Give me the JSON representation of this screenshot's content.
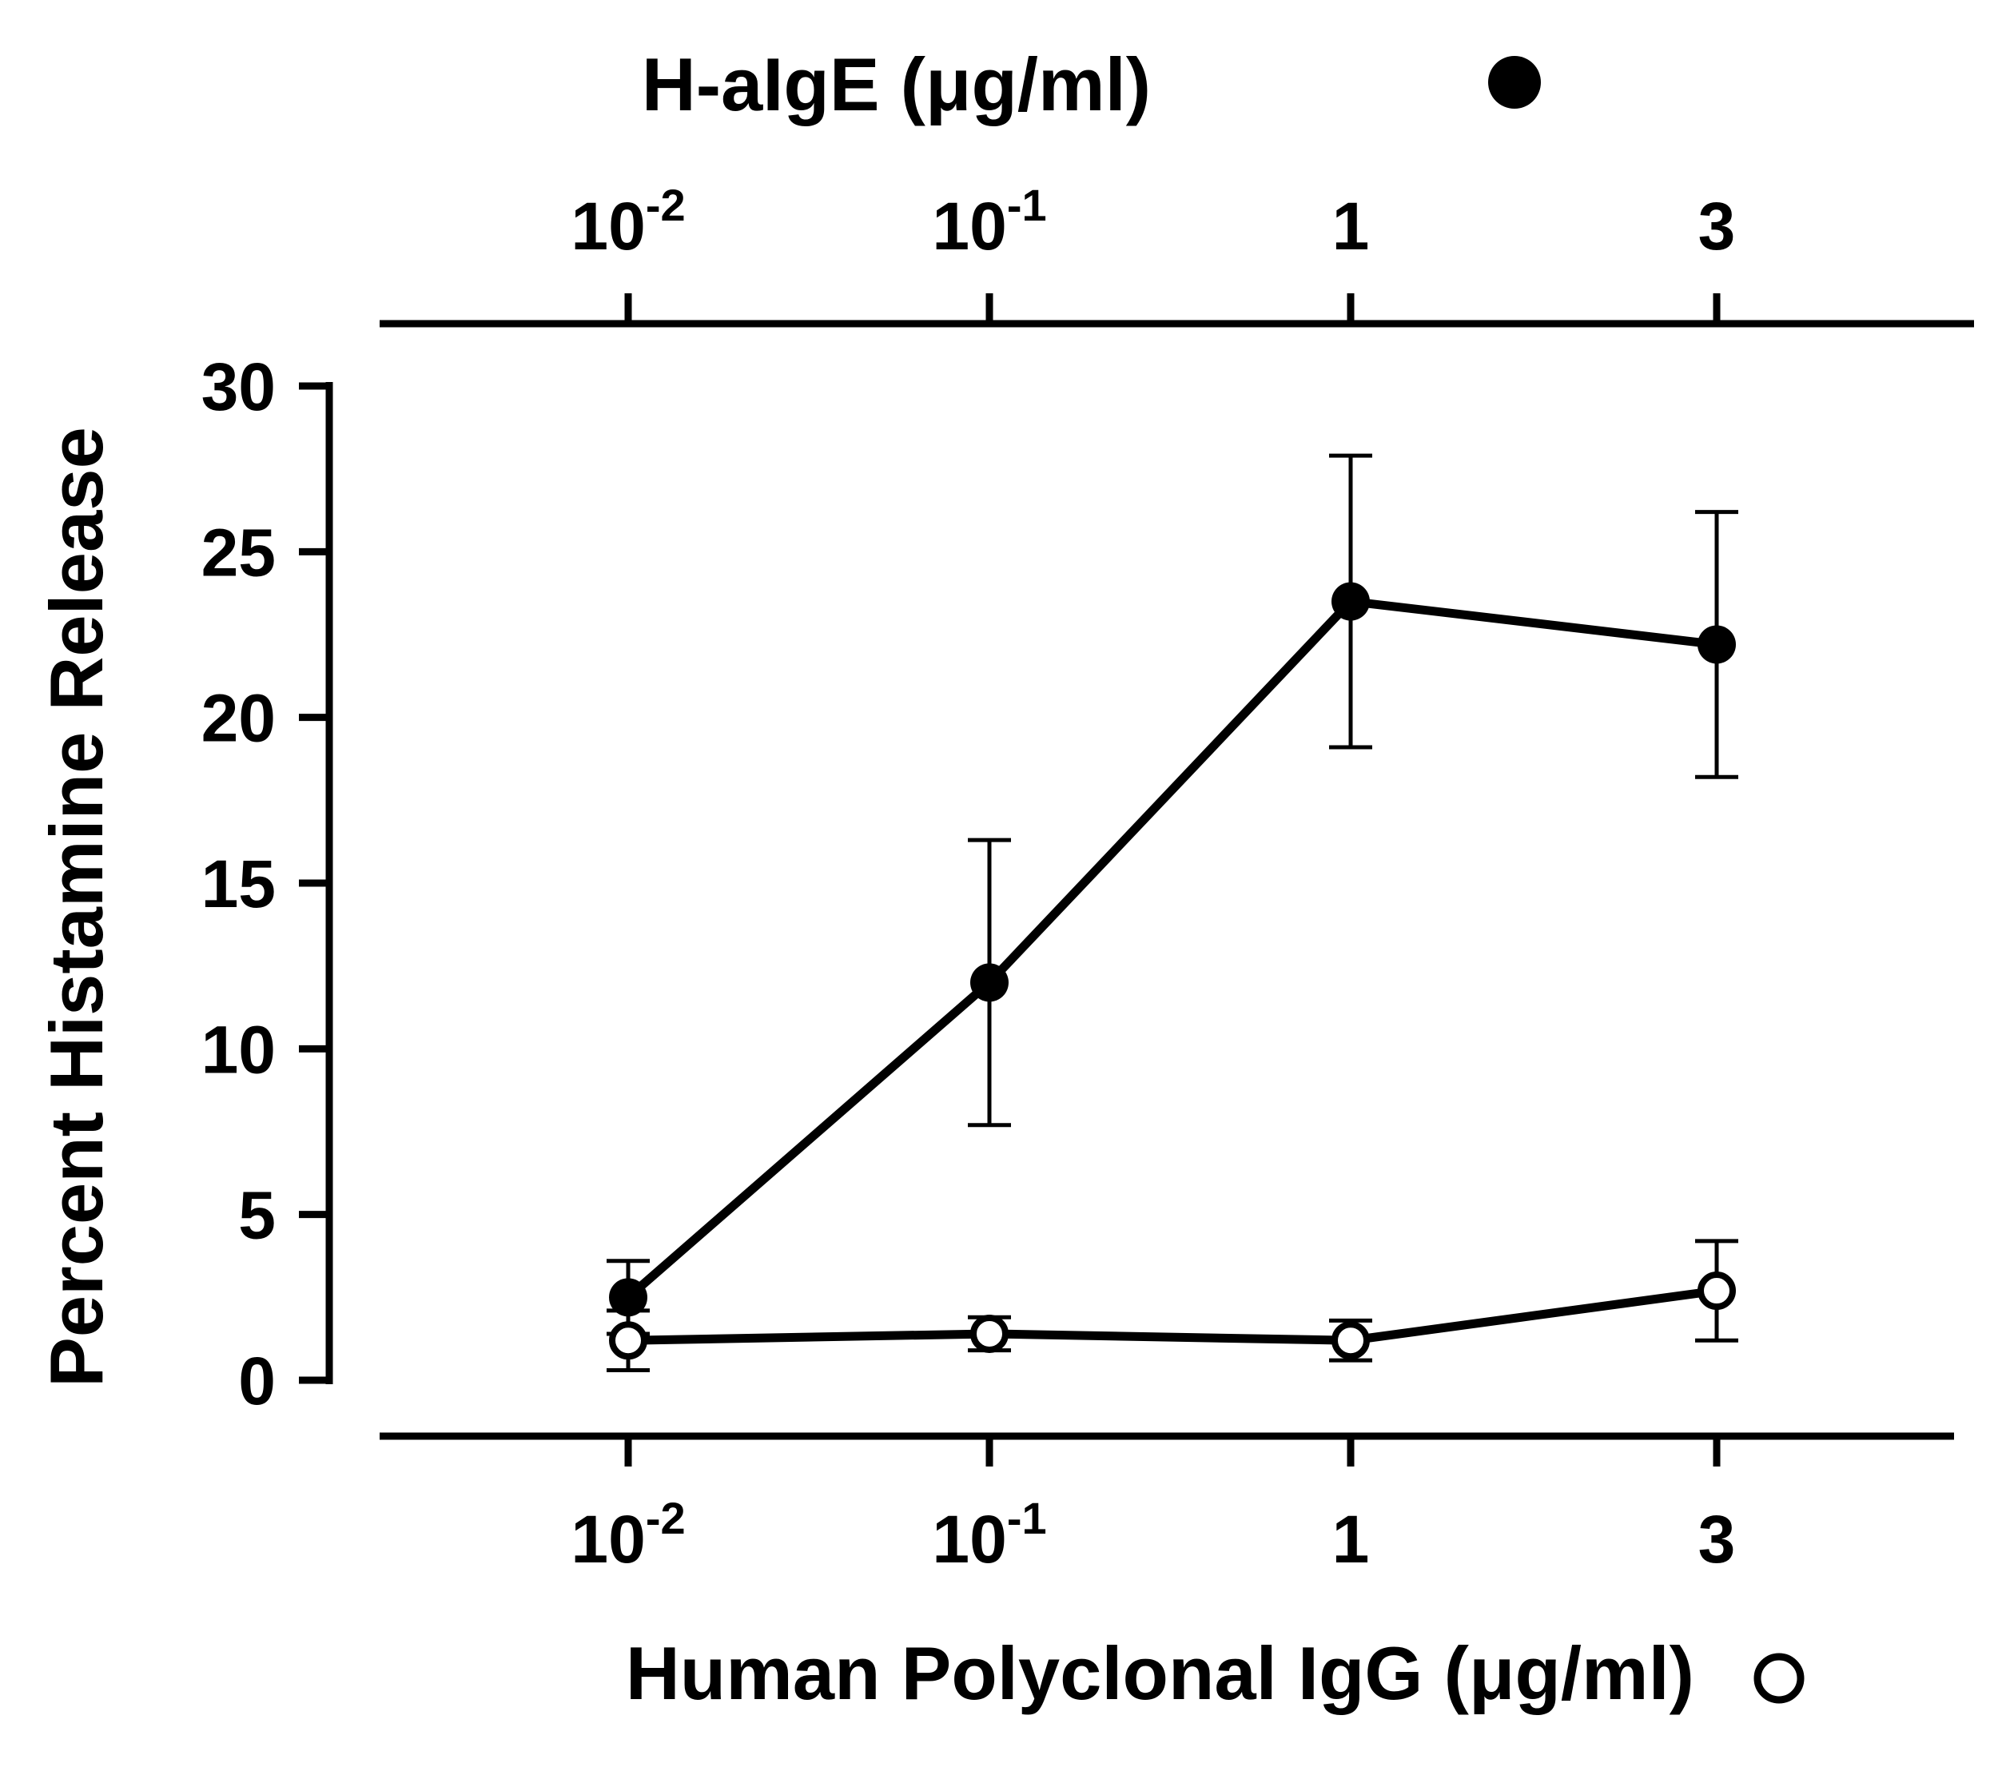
{
  "chart_data": {
    "type": "line",
    "categories": [
      "10^-2",
      "10^-1",
      "1",
      "3"
    ],
    "x_ticks": [
      {
        "base": "10",
        "exp": "-2"
      },
      {
        "base": "10",
        "exp": "-1"
      },
      {
        "base": "1",
        "exp": ""
      },
      {
        "base": "3",
        "exp": ""
      }
    ],
    "top_xlabel": "H-aIgE (μg/ml)",
    "bottom_xlabel": "Human Polyclonal IgG (μg/ml)",
    "ylabel": "Percent  Histamine  Release",
    "ylim": [
      0,
      30
    ],
    "y_ticks": [
      0,
      5,
      10,
      15,
      20,
      25,
      30
    ],
    "grid": false,
    "series": [
      {
        "name": "H-aIgE (μg/ml)",
        "axis": "top",
        "marker": "filled-circle",
        "values": [
          2.5,
          12.0,
          23.5,
          22.2
        ],
        "error": [
          1.1,
          4.3,
          4.4,
          4.0
        ]
      },
      {
        "name": "Human Polyclonal IgG (μg/ml)",
        "axis": "bottom",
        "marker": "open-circle",
        "values": [
          1.2,
          1.4,
          1.2,
          2.7
        ],
        "error": [
          0.9,
          0.5,
          0.6,
          1.5
        ]
      }
    ],
    "colors": {
      "line": "#000000",
      "marker_fill": "#000000",
      "background": "#ffffff"
    }
  }
}
